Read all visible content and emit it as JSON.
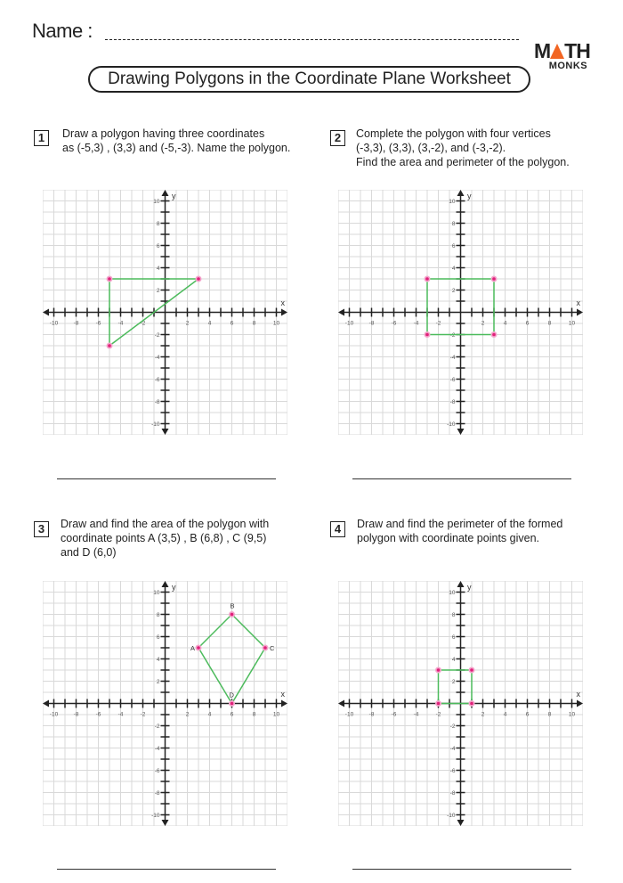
{
  "header": {
    "name_label": "Name :",
    "title": "Drawing Polygons in the Coordinate Plane Worksheet",
    "logo": "MATH MONKS"
  },
  "colors": {
    "polygon": "#4cbb5c",
    "vertex": "#e0207a",
    "grid": "#d9d9d9",
    "logo_triangle": "#f26522"
  },
  "problems": [
    {
      "number": "1",
      "lines": [
        "Draw a polygon having three coordinates",
        "as (-5,3) , (3,3) and (-5,-3). Name the polygon."
      ],
      "graph": {
        "range": [
          -10,
          10
        ],
        "points": [
          [
            -5,
            3
          ],
          [
            3,
            3
          ],
          [
            -5,
            -3
          ]
        ],
        "labels": []
      }
    },
    {
      "number": "2",
      "lines": [
        "Complete the polygon with four vertices",
        " (-3,3), (3,3), (3,-2), and (-3,-2).",
        "Find the area and perimeter of the polygon."
      ],
      "graph": {
        "range": [
          -10,
          10
        ],
        "points": [
          [
            -3,
            3
          ],
          [
            3,
            3
          ],
          [
            3,
            -2
          ],
          [
            -3,
            -2
          ]
        ],
        "labels": []
      }
    },
    {
      "number": "3",
      "lines": [
        "Draw and find the area of the polygon with",
        " coordinate points A (3,5) , B (6,8) , C (9,5)",
        "and D (6,0)"
      ],
      "graph": {
        "range": [
          -10,
          10
        ],
        "points": [
          [
            3,
            5
          ],
          [
            6,
            8
          ],
          [
            9,
            5
          ],
          [
            6,
            0
          ]
        ],
        "labels": [
          "A",
          "B",
          "C",
          "D"
        ]
      }
    },
    {
      "number": "4",
      "lines": [
        "Draw and find the perimeter of the formed",
        "polygon with coordinate points given."
      ],
      "graph": {
        "range": [
          -10,
          10
        ],
        "points": [
          [
            -2,
            3
          ],
          [
            1,
            3
          ],
          [
            1,
            0
          ],
          [
            -2,
            0
          ]
        ],
        "labels": []
      }
    }
  ],
  "axes": {
    "x_label": "x",
    "y_label": "y",
    "ticks": [
      "-10",
      "-8",
      "-6",
      "-4",
      "-2",
      "2",
      "4",
      "6",
      "8",
      "10"
    ]
  }
}
